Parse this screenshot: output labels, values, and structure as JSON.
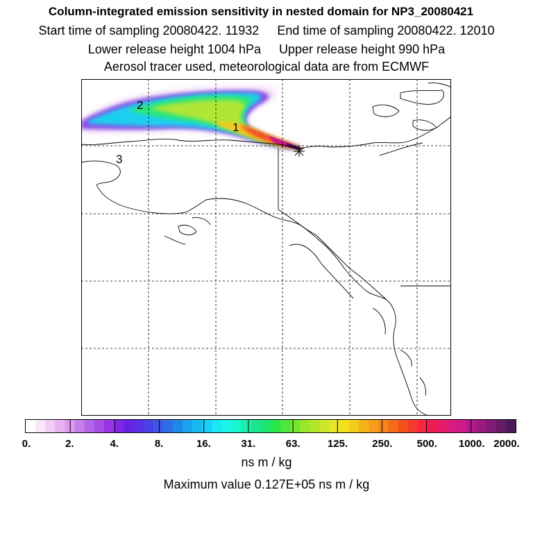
{
  "title": {
    "line1": "Column-integrated emission sensitivity in nested domain for NP3_20080421",
    "start": "Start time of sampling 20080422. 11932",
    "end": "End time of sampling 20080422. 12010",
    "lower": "Lower release height 1004 hPa",
    "upper": "Upper release height  990 hPa",
    "line4": "Aerosol tracer used, meteorological data are from ECMWF"
  },
  "map": {
    "plume_labels": [
      "1",
      "2",
      "3"
    ],
    "release_marker": "star-marker"
  },
  "colorbar": {
    "tick_labels": [
      "0.",
      "2.",
      "4.",
      "8.",
      "16.",
      "31.",
      "63.",
      "125.",
      "250.",
      "500.",
      "1000.",
      "2000."
    ],
    "colors": [
      "#ffffff",
      "#f9e6fb",
      "#f0ccf7",
      "#e6b2f3",
      "#dc99ef",
      "#c57fe8",
      "#b366e6",
      "#a64de6",
      "#9933e8",
      "#8026e6",
      "#6622e6",
      "#5b2ee6",
      "#4d3fe6",
      "#3f55e6",
      "#2e6ee6",
      "#1f88e8",
      "#1aa3ec",
      "#1ab8f0",
      "#1acff5",
      "#1ae6f5",
      "#1af5ea",
      "#1af5cc",
      "#1aeeaa",
      "#1ae68c",
      "#1ae66b",
      "#29e64d",
      "#4de63a",
      "#73e62e",
      "#99e62a",
      "#b3e62a",
      "#cce62a",
      "#e6e62a",
      "#f5e01a",
      "#f5cc1a",
      "#f5b31a",
      "#f59d1a",
      "#f5851a",
      "#f56b1a",
      "#f5521a",
      "#f53a2a",
      "#f5263e",
      "#f01a55",
      "#e61a6b",
      "#d91a80",
      "#cc1a8c",
      "#b31a8c",
      "#991a80",
      "#801a73",
      "#661a66",
      "#4d1a59"
    ],
    "units": "ns m / kg",
    "max_value": "Maximum value  0.127E+05 ns m / kg"
  }
}
